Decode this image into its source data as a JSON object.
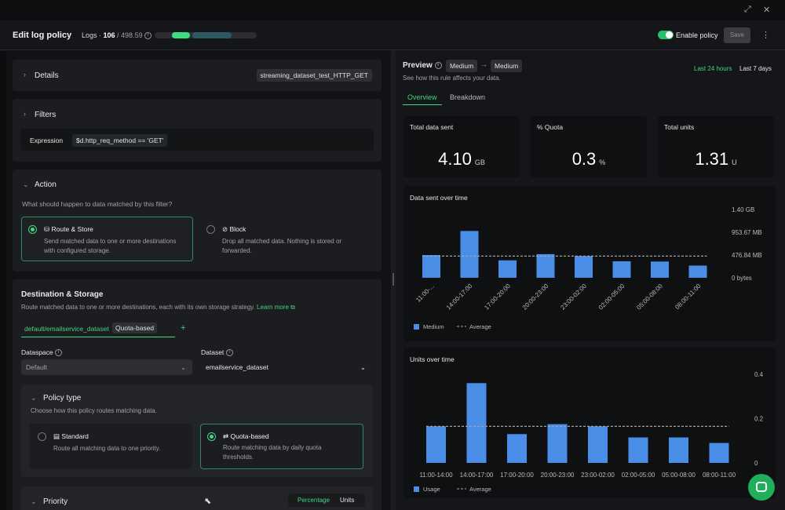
{
  "header": {
    "title": "Edit log policy",
    "logs_label": "Logs · ",
    "logs_count": "106",
    "logs_total": " / 498.59",
    "enable_label": "Enable policy",
    "save_label": "Save",
    "progress": 0.33
  },
  "details": {
    "label": "Details",
    "dataset_tag": "streaming_dataset_test_HTTP_GET"
  },
  "filters": {
    "label": "Filters",
    "expression_label": "Expression",
    "expression_value": "$d.http_req_method == 'GET'"
  },
  "action": {
    "label": "Action",
    "question": "What should happen to data matched by this filter?",
    "route": {
      "title": "Route & Store",
      "desc1": "Send matched data to one or more destinations",
      "desc2": "with configured storage."
    },
    "block": {
      "title": "Block",
      "desc1": "Drop all matched data. Nothing is stored or",
      "desc2": "forwarded."
    }
  },
  "destination": {
    "label": "Destination & Storage",
    "desc": "Route matched data to one or more destinations, each with its own storage strategy.",
    "learn_more": "Learn more",
    "tab_name": "default/emailservice_dataset",
    "tab_badge": "Quota-based",
    "add": "+",
    "dataspace_label": "Dataspace",
    "dataspace_value": "Default",
    "dataset_label": "Dataset",
    "dataset_value": "emailservice_dataset"
  },
  "policy": {
    "label": "Policy type",
    "desc": "Choose how this policy routes matching data.",
    "standard": {
      "title": "Standard",
      "desc": "Route all matching data to one priority."
    },
    "quota": {
      "title": "Quota-based",
      "desc1": "Route matching data by daily quota",
      "desc2": "thresholds."
    }
  },
  "priority": {
    "label": "Priority",
    "percentage": "Percentage",
    "units": "Units"
  },
  "preview": {
    "label": "Preview",
    "from": "Medium",
    "to": "Medium",
    "subtitle": "See how this rule affects your data.",
    "range_24h": "Last 24 hours",
    "range_7d": "Last 7 days",
    "tab_overview": "Overview",
    "tab_breakdown": "Breakdown"
  },
  "stats": [
    {
      "label": "Total data sent",
      "value": "4.10",
      "unit": "GB"
    },
    {
      "label": "% Quota",
      "value": "0.3",
      "unit": "%"
    },
    {
      "label": "Total units",
      "value": "1.31",
      "unit": "U"
    }
  ],
  "chart_data": [
    {
      "type": "bar",
      "title": "Data sent over time",
      "categories": [
        "11:00-...",
        "14:00-17:00",
        "17:00-20:00",
        "20:00-23:00",
        "23:00-02:00",
        "02:00-05:00",
        "05:00-08:00",
        "08:00-11:00"
      ],
      "series": [
        {
          "name": "Medium",
          "values": [
            476,
            980,
            365,
            495,
            455,
            345,
            340,
            255
          ]
        }
      ],
      "average": 455,
      "y_ticks": [
        "1.40 GB",
        "953.67 MB",
        "476.84 MB",
        "0 bytes"
      ],
      "y_tick_values": [
        1430,
        953.67,
        476.84,
        0
      ],
      "ylim": [
        0,
        1430
      ],
      "legend": [
        "Medium",
        "Average"
      ]
    },
    {
      "type": "bar",
      "title": "Units over time",
      "categories": [
        "11:00-14:00",
        "14:00-17:00",
        "17:00-20:00",
        "20:00-23:00",
        "23:00-02:00",
        "02:00-05:00",
        "05:00-08:00",
        "08:00-11:00"
      ],
      "series": [
        {
          "name": "Usage",
          "values": [
            0.165,
            0.36,
            0.13,
            0.175,
            0.165,
            0.115,
            0.115,
            0.09
          ]
        }
      ],
      "average": 0.165,
      "y_ticks": [
        "0.4",
        "0.2",
        "0"
      ],
      "y_tick_values": [
        0.4,
        0.2,
        0
      ],
      "ylim": [
        0,
        0.4
      ],
      "legend": [
        "Usage",
        "Average"
      ]
    }
  ],
  "colors": {
    "accent": "#3ddc84",
    "bar": "#4a8ee8"
  }
}
